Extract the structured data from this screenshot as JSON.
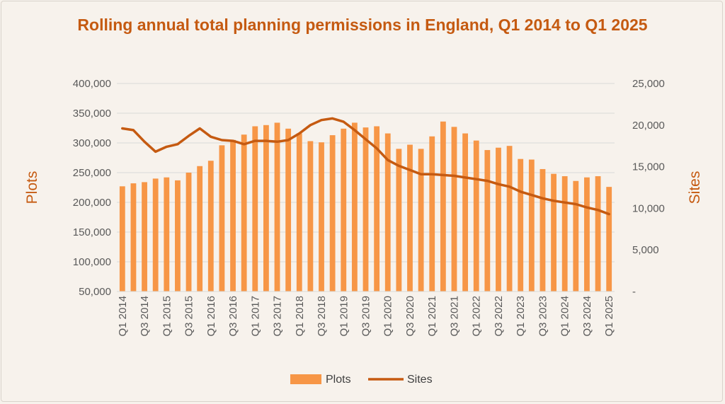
{
  "chart_data": {
    "type": "bar",
    "title": "Rolling annual total planning permissions in England, Q1 2014 to Q1 2025",
    "xlabel": "",
    "ylabel": "Plots",
    "y2label": "Sites",
    "ylim": [
      50000,
      400000
    ],
    "y2lim": [
      0,
      25000
    ],
    "y_ticks": [
      "50,000",
      "100,000",
      "150,000",
      "200,000",
      "250,000",
      "300,000",
      "350,000",
      "400,000"
    ],
    "y2_ticks": [
      "-",
      "5,000",
      "10,000",
      "15,000",
      "20,000",
      "25,000"
    ],
    "categories": [
      "Q1 2014",
      "Q2 2014",
      "Q3 2014",
      "Q4 2014",
      "Q1 2015",
      "Q2 2015",
      "Q3 2015",
      "Q4 2015",
      "Q1 2016",
      "Q2 2016",
      "Q3 2016",
      "Q4 2016",
      "Q1 2017",
      "Q2 2017",
      "Q3 2017",
      "Q4 2017",
      "Q1 2018",
      "Q2 2018",
      "Q3 2018",
      "Q4 2018",
      "Q1 2019",
      "Q2 2019",
      "Q3 2019",
      "Q4 2019",
      "Q1 2020",
      "Q2 2020",
      "Q3 2020",
      "Q4 2020",
      "Q1 2021",
      "Q2 2021",
      "Q3 2021",
      "Q4 2021",
      "Q1 2022",
      "Q2 2022",
      "Q3 2022",
      "Q4 2022",
      "Q1 2023",
      "Q2 2023",
      "Q3 2023",
      "Q4 2023",
      "Q1 2024",
      "Q2 2024",
      "Q3 2024",
      "Q4 2024",
      "Q1 2025"
    ],
    "x_tick_labels": [
      "Q1 2014",
      "Q3 2014",
      "Q1 2015",
      "Q3 2015",
      "Q1 2016",
      "Q3 2016",
      "Q1 2017",
      "Q3 2017",
      "Q1 2018",
      "Q3 2018",
      "Q1 2019",
      "Q3 2019",
      "Q1 2020",
      "Q3 2020",
      "Q1 2021",
      "Q3 2021",
      "Q1 2022",
      "Q3 2022",
      "Q1 2023",
      "Q3 2023",
      "Q1 2024",
      "Q3 2024",
      "Q1 2025"
    ],
    "series": [
      {
        "name": "Plots",
        "type": "bar",
        "axis": "left",
        "color": "#f79646",
        "values": [
          227000,
          232000,
          234000,
          240000,
          242000,
          237000,
          250000,
          261000,
          270000,
          296000,
          305000,
          314000,
          328000,
          330000,
          334000,
          324000,
          316000,
          303000,
          301000,
          313000,
          324000,
          334000,
          326000,
          328000,
          316000,
          290000,
          297000,
          290000,
          311000,
          336000,
          327000,
          316000,
          304000,
          288000,
          292000,
          295000,
          273000,
          272000,
          256000,
          248000,
          244000,
          236000,
          242000,
          244000,
          226000
        ]
      },
      {
        "name": "Sites",
        "type": "line",
        "axis": "right",
        "color": "#c55a11",
        "values": [
          19600,
          19400,
          18000,
          16800,
          17400,
          17700,
          18700,
          19600,
          18600,
          18200,
          18100,
          17700,
          18100,
          18100,
          18000,
          18200,
          19000,
          20000,
          20600,
          20800,
          20400,
          19400,
          18300,
          17200,
          15800,
          15100,
          14600,
          14100,
          14100,
          14000,
          13900,
          13700,
          13500,
          13300,
          12900,
          12600,
          12000,
          11600,
          11200,
          10900,
          10700,
          10500,
          10100,
          9800,
          9300
        ]
      }
    ]
  }
}
